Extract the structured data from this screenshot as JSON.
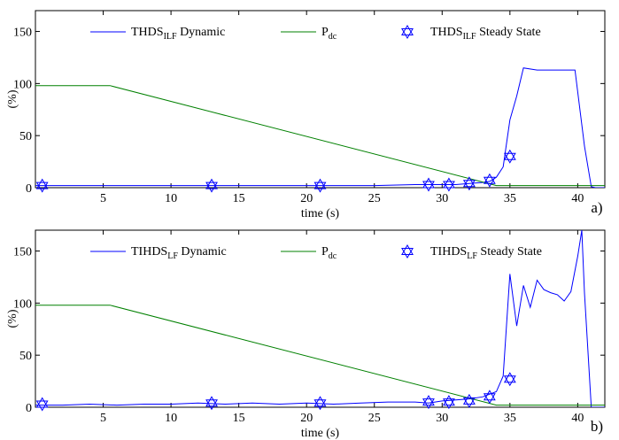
{
  "chart_data": [
    {
      "type": "line",
      "panel_label": "a)",
      "xlabel": "time (s)",
      "ylabel": "(%)",
      "xlim": [
        0,
        42
      ],
      "ylim": [
        0,
        170
      ],
      "x_ticks": [
        5,
        10,
        15,
        20,
        25,
        30,
        35,
        40
      ],
      "y_ticks": [
        0,
        50,
        100,
        150
      ],
      "grid": false,
      "legend_position": "top",
      "legend": {
        "s1_main": "THDS",
        "s1_sub": "ILF",
        "s1_tail": " Dynamic",
        "s2_main": "P",
        "s2_sub": "dc",
        "s2_tail": "",
        "s3_main": "THDS",
        "s3_sub": "ILF",
        "s3_tail": " Steady State"
      },
      "series": [
        {
          "color": "#0000ff",
          "style": "line",
          "x": [
            0,
            5,
            10,
            15,
            20,
            25,
            28,
            30,
            31,
            32,
            33,
            33.5,
            34,
            34.5,
            35,
            35.5,
            36,
            37,
            38,
            39,
            39.8,
            40.5,
            41,
            41.3,
            42
          ],
          "y": [
            2,
            2,
            2,
            2,
            2,
            2,
            3,
            3,
            3,
            4,
            5,
            6,
            10,
            20,
            65,
            88,
            115,
            113,
            113,
            113,
            113,
            40,
            1,
            0,
            0
          ]
        },
        {
          "color": "#008000",
          "style": "line",
          "x": [
            0,
            5.5,
            34,
            42
          ],
          "y": [
            98,
            98,
            2,
            2
          ]
        },
        {
          "color": "#0000ff",
          "style": "marker",
          "marker": "hexagram",
          "x": [
            0.5,
            13,
            21,
            29,
            30.5,
            32,
            33.5,
            35
          ],
          "y": [
            2,
            2,
            2,
            3,
            3,
            4,
            7,
            30
          ]
        }
      ]
    },
    {
      "type": "line",
      "panel_label": "b)",
      "xlabel": "time (s)",
      "ylabel": "(%)",
      "xlim": [
        0,
        42
      ],
      "ylim": [
        0,
        170
      ],
      "x_ticks": [
        5,
        10,
        15,
        20,
        25,
        30,
        35,
        40
      ],
      "y_ticks": [
        0,
        50,
        100,
        150
      ],
      "grid": false,
      "legend_position": "top",
      "legend": {
        "s1_main": "TIHDS",
        "s1_sub": "LF",
        "s1_tail": " Dynamic",
        "s2_main": "P",
        "s2_sub": "dc",
        "s2_tail": "",
        "s3_main": "TIHDS",
        "s3_sub": "LF",
        "s3_tail": " Steady State"
      },
      "series": [
        {
          "color": "#0000ff",
          "style": "line",
          "x": [
            0,
            2,
            4,
            6,
            8,
            10,
            12,
            14,
            16,
            18,
            20,
            22,
            24,
            26,
            28,
            29,
            30,
            31,
            32,
            33,
            34,
            34.5,
            35,
            35.5,
            36,
            36.5,
            37,
            37.5,
            38,
            38.5,
            39,
            39.5,
            40,
            40.3,
            40.5,
            41,
            42
          ],
          "y": [
            2,
            2,
            3,
            2,
            3,
            3,
            4,
            3,
            4,
            3,
            4,
            3,
            4,
            5,
            5,
            4,
            6,
            7,
            8,
            10,
            15,
            30,
            128,
            78,
            117,
            96,
            122,
            113,
            110,
            108,
            102,
            111,
            145,
            170,
            110,
            0,
            0
          ]
        },
        {
          "color": "#008000",
          "style": "line",
          "x": [
            0,
            5.5,
            34,
            42
          ],
          "y": [
            98,
            98,
            2,
            2
          ]
        },
        {
          "color": "#0000ff",
          "style": "marker",
          "marker": "hexagram",
          "x": [
            0.5,
            13,
            21,
            29,
            30.5,
            32,
            33.5,
            35
          ],
          "y": [
            3,
            4,
            4,
            5,
            5,
            6,
            10,
            27
          ]
        }
      ]
    }
  ]
}
